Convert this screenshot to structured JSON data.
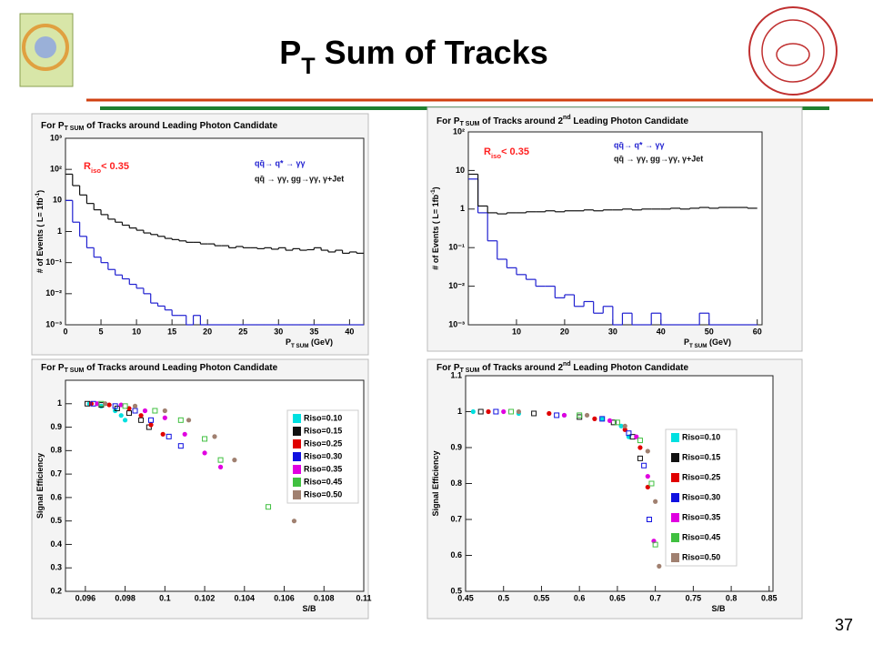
{
  "title": [
    "P",
    {
      "text": "T",
      "script": "sub"
    },
    " Sum of Tracks"
  ],
  "page_number": "37",
  "chart_data": [
    {
      "type": "histogram",
      "title": [
        "For P",
        {
          "text": "T SUM",
          "script": "sub"
        },
        " of Tracks around Leading Photon Candidate"
      ],
      "xlabel": [
        "P",
        {
          "text": "T SUM",
          "script": "sub"
        },
        " (GeV)"
      ],
      "ylabel": [
        "# of Events ( L= 1fb",
        {
          "text": "-1",
          "script": "sup"
        },
        ")"
      ],
      "annotation": [
        "R",
        {
          "text": "iso",
          "script": "sub"
        },
        "< 0.35"
      ],
      "annotation_color": "#ff2020",
      "bins": [
        0,
        1,
        2,
        3,
        4,
        5,
        6,
        7,
        8,
        9,
        10,
        11,
        12,
        13,
        14,
        15,
        16,
        17,
        18,
        19,
        20,
        21,
        22,
        23,
        24,
        25,
        26,
        27,
        28,
        29,
        30,
        31,
        32,
        33,
        34,
        35,
        36,
        37,
        38,
        39,
        40,
        41,
        42
      ],
      "series": [
        {
          "name": "qq̄→  q* → γγ",
          "color": "#2020d0",
          "values": [
            10,
            2,
            0.7,
            0.3,
            0.15,
            0.1,
            0.06,
            0.04,
            0.03,
            0.02,
            0.015,
            0.01,
            0.005,
            0.004,
            0.003,
            0.002,
            0.002,
            0.001,
            0.002,
            0,
            0.001,
            0,
            0,
            0.001,
            0,
            0.001,
            0,
            0.001,
            0,
            0,
            0.001,
            0,
            0.001,
            0,
            0.001,
            0,
            0,
            0.001,
            0,
            0.001,
            0,
            0
          ]
        },
        {
          "name": "qq̄ → γγ, gg→γγ, γ+Jet",
          "color": "#111111",
          "values": [
            70,
            30,
            15,
            8,
            5,
            3.5,
            2.5,
            2,
            1.6,
            1.3,
            1.1,
            0.9,
            0.8,
            0.7,
            0.6,
            0.55,
            0.5,
            0.45,
            0.45,
            0.4,
            0.4,
            0.35,
            0.35,
            0.3,
            0.33,
            0.3,
            0.3,
            0.28,
            0.3,
            0.27,
            0.3,
            0.25,
            0.28,
            0.25,
            0.26,
            0.3,
            0.25,
            0.22,
            0.25,
            0.2,
            0.22,
            0.2
          ]
        }
      ],
      "xlim": [
        0,
        42
      ],
      "xticks": [
        0,
        5,
        10,
        15,
        20,
        25,
        30,
        35,
        40
      ],
      "ylim": [
        0.001,
        1000
      ],
      "log_y": true,
      "yticks": [
        {
          "value": 0.001,
          "label": "10⁻³"
        },
        {
          "value": 0.01,
          "label": "10⁻²"
        },
        {
          "value": 0.1,
          "label": "10⁻¹"
        },
        1,
        10,
        {
          "value": 100,
          "label": "10²"
        },
        {
          "value": 1000,
          "label": "10³"
        }
      ]
    },
    {
      "type": "histogram",
      "title": [
        "For P",
        {
          "text": "T SUM",
          "script": "sub"
        },
        " of Tracks around 2",
        {
          "text": "nd",
          "script": "sup"
        },
        " Leading Photon Candidate"
      ],
      "xlabel": [
        "P",
        {
          "text": "T SUM",
          "script": "sub"
        },
        " (GeV)"
      ],
      "ylabel": [
        "# of Events ( L= 1fb",
        {
          "text": "-1",
          "script": "sup"
        },
        ")"
      ],
      "annotation": [
        "R",
        {
          "text": "iso",
          "script": "sub"
        },
        "< 0.35"
      ],
      "annotation_color": "#ff2020",
      "bins": [
        0,
        2,
        4,
        6,
        8,
        10,
        12,
        14,
        16,
        18,
        20,
        22,
        24,
        26,
        28,
        30,
        32,
        34,
        36,
        38,
        40,
        42,
        44,
        46,
        48,
        50,
        52,
        54,
        56,
        58,
        60
      ],
      "series": [
        {
          "name": "qq̄→  q* → γγ",
          "color": "#2020d0",
          "values": [
            6,
            0.8,
            0.15,
            0.05,
            0.03,
            0.02,
            0.015,
            0.01,
            0.01,
            0.005,
            0.006,
            0.003,
            0.004,
            0.002,
            0.003,
            0.001,
            0.002,
            0.001,
            0.001,
            0.002,
            0,
            0.001,
            0.001,
            0,
            0.002,
            0.001,
            0,
            0.001,
            0,
            0.001
          ]
        },
        {
          "name": "qq̄ → γγ, gg→γγ, γ+Jet",
          "color": "#111111",
          "values": [
            8,
            1.2,
            0.8,
            0.75,
            0.8,
            0.8,
            0.85,
            0.85,
            0.9,
            0.85,
            0.9,
            0.9,
            0.95,
            0.9,
            0.95,
            0.95,
            1,
            0.95,
            1,
            1,
            1,
            1.05,
            1,
            1.05,
            1.1,
            1.05,
            1.1,
            1.1,
            1.1,
            1.05
          ]
        }
      ],
      "xlim": [
        0,
        61
      ],
      "xticks": [
        10,
        20,
        30,
        40,
        50,
        60
      ],
      "ylim": [
        0.001,
        100
      ],
      "log_y": true,
      "yticks": [
        {
          "value": 0.001,
          "label": "10⁻³"
        },
        {
          "value": 0.01,
          "label": "10⁻²"
        },
        {
          "value": 0.1,
          "label": "10⁻¹"
        },
        1,
        10,
        {
          "value": 100,
          "label": "10²"
        }
      ]
    },
    {
      "type": "scatter",
      "title": [
        "For P",
        {
          "text": "T SUM",
          "script": "sub"
        },
        " of Tracks around Leading Photon Candidate"
      ],
      "xlabel": [
        "S/B"
      ],
      "ylabel": [
        "Signal Efficiency"
      ],
      "series": [
        {
          "name": "Riso=0.10",
          "color": "#00e0e0",
          "x": [
            0.0962,
            0.0968,
            0.0975,
            0.0978,
            0.098
          ],
          "values": [
            1,
            0.99,
            0.97,
            0.95,
            0.93
          ]
        },
        {
          "name": "Riso=0.15",
          "color": "#111111",
          "x": [
            0.0961,
            0.0968,
            0.0976,
            0.0982,
            0.0988,
            0.0992
          ],
          "values": [
            1,
            0.995,
            0.98,
            0.96,
            0.93,
            0.9
          ]
        },
        {
          "name": "Riso=0.25",
          "color": "#e00000",
          "x": [
            0.0963,
            0.0972,
            0.0982,
            0.0988,
            0.0993,
            0.0999
          ],
          "values": [
            1,
            0.995,
            0.98,
            0.95,
            0.91,
            0.87
          ]
        },
        {
          "name": "Riso=0.30",
          "color": "#1010e0",
          "x": [
            0.0964,
            0.0975,
            0.0985,
            0.0993,
            0.1002,
            0.1008
          ],
          "values": [
            1,
            0.99,
            0.97,
            0.93,
            0.86,
            0.82
          ]
        },
        {
          "name": "Riso=0.35",
          "color": "#e000e0",
          "x": [
            0.0966,
            0.0978,
            0.099,
            0.1,
            0.101,
            0.102,
            0.1028
          ],
          "values": [
            1,
            0.995,
            0.97,
            0.94,
            0.87,
            0.79,
            0.73
          ]
        },
        {
          "name": "Riso=0.45",
          "color": "#40c040",
          "x": [
            0.0968,
            0.098,
            0.0995,
            0.1008,
            0.102,
            0.1028,
            0.1052
          ],
          "values": [
            1,
            0.99,
            0.97,
            0.93,
            0.85,
            0.76,
            0.56
          ]
        },
        {
          "name": "Riso=0.50",
          "color": "#a08070",
          "x": [
            0.097,
            0.0985,
            0.1,
            0.1012,
            0.1025,
            0.1035,
            0.1065
          ],
          "values": [
            1,
            0.99,
            0.97,
            0.93,
            0.86,
            0.76,
            0.5
          ]
        }
      ],
      "xlim": [
        0.095,
        0.11
      ],
      "xticks": [
        0.096,
        0.098,
        0.1,
        0.102,
        0.104,
        0.106,
        0.108,
        0.11
      ],
      "ylim": [
        0.2,
        1.1
      ],
      "yticks": [
        0.2,
        0.3,
        0.4,
        0.5,
        0.6,
        0.7,
        0.8,
        0.9,
        1
      ]
    },
    {
      "type": "scatter",
      "title": [
        "For P",
        {
          "text": "T SUM",
          "script": "sub"
        },
        " of Tracks around 2",
        {
          "text": "nd",
          "script": "sup"
        },
        " Leading Photon Candidate"
      ],
      "xlabel": [
        "S/B"
      ],
      "ylabel": [
        "Signal Efficiency"
      ],
      "series": [
        {
          "name": "Riso=0.10",
          "color": "#00e0e0",
          "x": [
            0.46,
            0.52,
            0.58,
            0.63,
            0.655,
            0.665
          ],
          "values": [
            1,
            0.995,
            0.99,
            0.98,
            0.96,
            0.93
          ]
        },
        {
          "name": "Riso=0.15",
          "color": "#111111",
          "x": [
            0.47,
            0.54,
            0.6,
            0.645,
            0.67,
            0.68
          ],
          "values": [
            1,
            0.995,
            0.985,
            0.97,
            0.93,
            0.87
          ]
        },
        {
          "name": "Riso=0.25",
          "color": "#e00000",
          "x": [
            0.48,
            0.56,
            0.62,
            0.66,
            0.68,
            0.69
          ],
          "values": [
            1,
            0.995,
            0.98,
            0.95,
            0.9,
            0.79
          ]
        },
        {
          "name": "Riso=0.30",
          "color": "#1010e0",
          "x": [
            0.49,
            0.57,
            0.63,
            0.665,
            0.685,
            0.692
          ],
          "values": [
            1,
            0.99,
            0.98,
            0.94,
            0.85,
            0.7
          ]
        },
        {
          "name": "Riso=0.35",
          "color": "#e000e0",
          "x": [
            0.5,
            0.58,
            0.64,
            0.675,
            0.69,
            0.698
          ],
          "values": [
            1,
            0.99,
            0.975,
            0.93,
            0.82,
            0.64
          ]
        },
        {
          "name": "Riso=0.45",
          "color": "#40c040",
          "x": [
            0.51,
            0.6,
            0.65,
            0.68,
            0.695,
            0.7
          ],
          "values": [
            1,
            0.99,
            0.97,
            0.92,
            0.8,
            0.63
          ]
        },
        {
          "name": "Riso=0.50",
          "color": "#a08070",
          "x": [
            0.52,
            0.61,
            0.66,
            0.69,
            0.7,
            0.705
          ],
          "values": [
            1,
            0.99,
            0.96,
            0.89,
            0.75,
            0.57
          ]
        }
      ],
      "xlim": [
        0.45,
        0.855
      ],
      "xticks": [
        0.45,
        0.5,
        0.55,
        0.6,
        0.65,
        0.7,
        0.75,
        0.8,
        0.85
      ],
      "ylim": [
        0.5,
        1.1
      ],
      "yticks": [
        0.5,
        0.6,
        0.7,
        0.8,
        0.9,
        1,
        1.1
      ]
    }
  ]
}
